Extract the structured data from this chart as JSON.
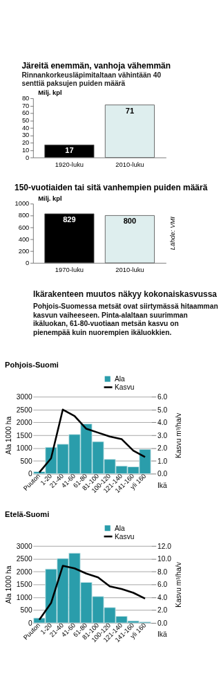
{
  "chart_data": [
    {
      "type": "bar",
      "title": "Järeitä enemmän, vanhoja vähemmän",
      "subtitle": "Rinnankorkeusläpimitaltaan vähintään 40 senttiä paksujen puiden määrä",
      "ylabel": "Milj. kpl",
      "categories": [
        "1920-luku",
        "2010-luku"
      ],
      "values": [
        17,
        71
      ],
      "colors": [
        "#000000",
        "#deeeee"
      ],
      "ylim": [
        0,
        80
      ],
      "yticks": [
        0,
        10,
        20,
        30,
        40,
        50,
        60,
        70,
        80
      ],
      "data_labels": true,
      "grid": false
    },
    {
      "type": "bar",
      "title": "150-vuotiaiden tai sitä vanhempien puiden määrä",
      "ylabel": "Milj. kpl",
      "categories": [
        "1970-luku",
        "2010-luku"
      ],
      "values": [
        829,
        800
      ],
      "colors": [
        "#000000",
        "#deeeee"
      ],
      "ylim": [
        0,
        1000
      ],
      "yticks": [
        0,
        200,
        400,
        600,
        800,
        1000
      ],
      "data_labels": true,
      "grid": false,
      "annotations": [
        "Lähde: VMI"
      ]
    },
    {
      "type": "other",
      "title": "Ikärakenteen muutos näkyy kokonaiskasvussa",
      "subtitle": "Pohjois-Suomessa metsät ovat siirtymässä hitaamman kasvun vaiheeseen. Pinta-alaltaan suurimman ikäluokan, 61-80-vuotiaan metsän kasvu on pienempää kuin nuorempien ikäluokkien."
    },
    {
      "type": "bar",
      "title": "Pohjois-Suomi",
      "xlabel": "Ikä",
      "ylabel": "Ala 1000 ha",
      "y2label": "Kasvu m³/ha/v",
      "categories": [
        "Puuton",
        "1-20",
        "21-40",
        "41-60",
        "61-80",
        "81-100",
        "100-120",
        "121-140",
        "141-160",
        "yli 160"
      ],
      "series": [
        {
          "name": "Ala",
          "color": "#2a9dab",
          "values": [
            80,
            1030,
            1150,
            1530,
            1940,
            1250,
            560,
            300,
            270,
            950
          ]
        },
        {
          "name": "Kasvu",
          "type": "line",
          "axis": "y2",
          "color": "#000000",
          "values": [
            0.1,
            1.2,
            5.0,
            4.5,
            3.5,
            3.2,
            2.9,
            2.7,
            1.8,
            1.3
          ]
        }
      ],
      "ylim": [
        0,
        3000
      ],
      "yticks": [
        0,
        500,
        1000,
        1500,
        2000,
        2500,
        3000
      ],
      "y2lim": [
        0,
        6
      ],
      "y2ticks": [
        {
          "value": 0,
          "label": "0.0"
        },
        {
          "value": 1,
          "label": "1.0"
        },
        {
          "value": 2,
          "label": "2.0"
        },
        {
          "value": 3,
          "label": "3.0"
        },
        {
          "value": 4,
          "label": "4.0"
        },
        {
          "value": 5,
          "label": "5.0"
        },
        {
          "value": 6,
          "label": "6.0"
        }
      ],
      "grid": "y",
      "legend": "top right"
    },
    {
      "type": "bar",
      "title": "Etelä-Suomi",
      "xlabel": "Ikä",
      "ylabel": "Ala 1000 ha",
      "y2label": "Kasvu m³/ha/v",
      "categories": [
        "Puuton",
        "1-20",
        "21-40",
        "41-60",
        "61-80",
        "81-100",
        "100-120",
        "121-140",
        "141-160",
        "yli 160"
      ],
      "series": [
        {
          "name": "Ala",
          "color": "#2a9dab",
          "values": [
            190,
            2100,
            2510,
            2720,
            1580,
            1030,
            600,
            260,
            80,
            40
          ]
        },
        {
          "name": "Kasvu",
          "type": "line",
          "axis": "y2",
          "color": "#000000",
          "values": [
            0.5,
            3.1,
            8.9,
            8.5,
            7.7,
            7.1,
            5.7,
            5.3,
            4.7,
            3.8
          ]
        }
      ],
      "ylim": [
        0,
        3000
      ],
      "yticks": [
        0,
        500,
        1000,
        1500,
        2000,
        2500,
        3000
      ],
      "y2lim": [
        0,
        12
      ],
      "y2ticks": [
        {
          "value": 0,
          "label": "0.0"
        },
        {
          "value": 2,
          "label": "2.0"
        },
        {
          "value": 4,
          "label": "4.0"
        },
        {
          "value": 6,
          "label": "6.0"
        },
        {
          "value": 8,
          "label": "8.0"
        },
        {
          "value": 10,
          "label": "10.0"
        },
        {
          "value": 12,
          "label": "12.0"
        }
      ],
      "grid": "y",
      "legend": "top right"
    }
  ]
}
